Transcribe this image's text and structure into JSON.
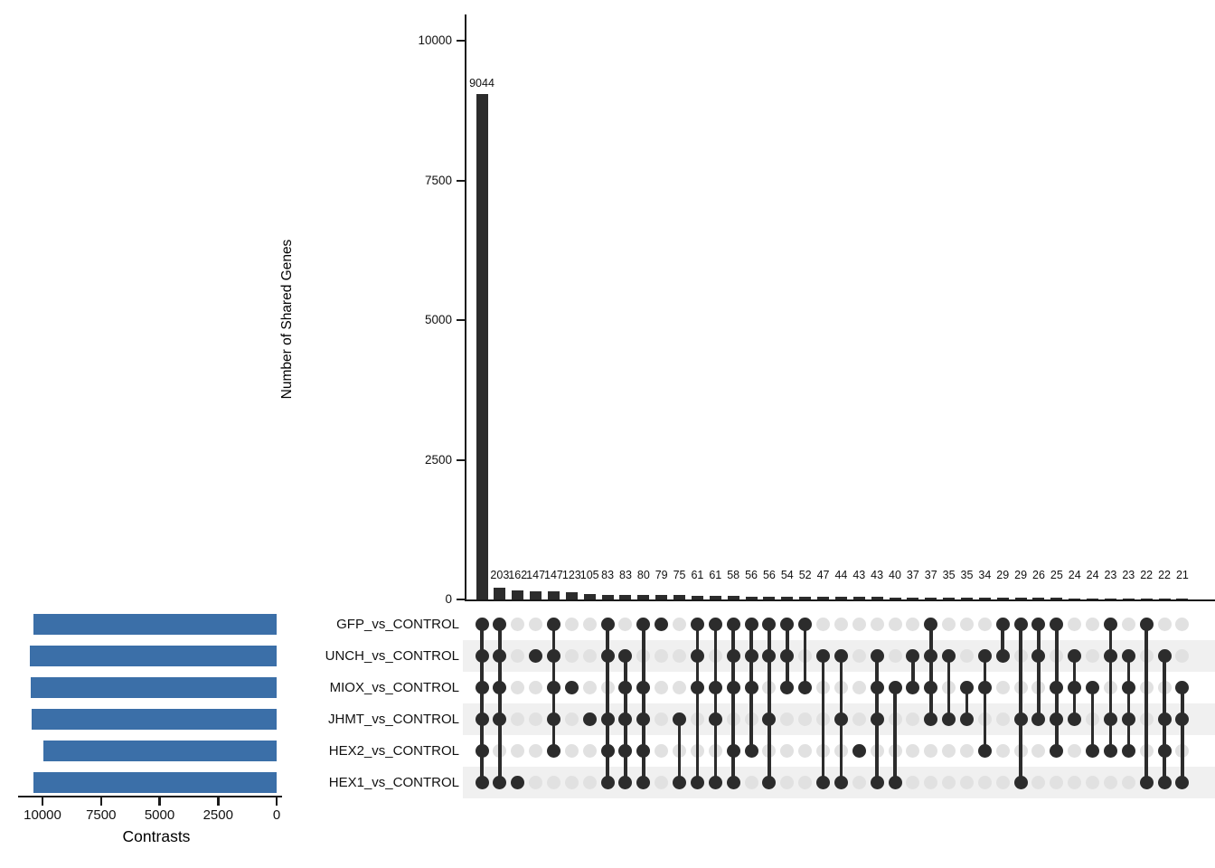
{
  "chart_data": {
    "type": "upset",
    "y_axis_label": "Number of Shared Genes",
    "y_ticks": [
      0,
      2500,
      5000,
      7500,
      10000
    ],
    "y_max": 10000,
    "set_size_axis_label": "Contrasts",
    "set_size_ticks": [
      10000,
      7500,
      5000,
      2500,
      0
    ],
    "set_size_max": 10000,
    "sets": [
      {
        "label": "GFP_vs_CONTROL",
        "size": 10400
      },
      {
        "label": "UNCH_vs_CONTROL",
        "size": 10550
      },
      {
        "label": "MIOX_vs_CONTROL",
        "size": 10500
      },
      {
        "label": "JHMT_vs_CONTROL",
        "size": 10450
      },
      {
        "label": "HEX2_vs_CONTROL",
        "size": 9950
      },
      {
        "label": "HEX1_vs_CONTROL",
        "size": 10400
      }
    ],
    "intersections": [
      {
        "size": 9044,
        "members": [
          0,
          1,
          2,
          3,
          4,
          5
        ]
      },
      {
        "size": 203,
        "members": [
          0,
          1,
          2,
          3,
          5
        ]
      },
      {
        "size": 162,
        "members": [
          5
        ]
      },
      {
        "size": 147,
        "members": [
          1
        ]
      },
      {
        "size": 147,
        "members": [
          0,
          1,
          2,
          3,
          4
        ]
      },
      {
        "size": 123,
        "members": [
          2
        ]
      },
      {
        "size": 105,
        "members": [
          3
        ]
      },
      {
        "size": 83,
        "members": [
          0,
          1,
          3,
          4,
          5
        ]
      },
      {
        "size": 83,
        "members": [
          1,
          2,
          3,
          4,
          5
        ]
      },
      {
        "size": 80,
        "members": [
          0,
          2,
          3,
          4,
          5
        ]
      },
      {
        "size": 79,
        "members": [
          0
        ]
      },
      {
        "size": 75,
        "members": [
          3,
          5
        ]
      },
      {
        "size": 61,
        "members": [
          0,
          1,
          2,
          5
        ]
      },
      {
        "size": 61,
        "members": [
          0,
          2,
          3,
          5
        ]
      },
      {
        "size": 58,
        "members": [
          0,
          1,
          2,
          4,
          5
        ]
      },
      {
        "size": 56,
        "members": [
          0,
          1,
          2,
          4
        ]
      },
      {
        "size": 56,
        "members": [
          0,
          1,
          3,
          5
        ]
      },
      {
        "size": 54,
        "members": [
          0,
          1,
          2
        ]
      },
      {
        "size": 52,
        "members": [
          0,
          2
        ]
      },
      {
        "size": 47,
        "members": [
          1,
          5
        ]
      },
      {
        "size": 44,
        "members": [
          1,
          3,
          5
        ]
      },
      {
        "size": 43,
        "members": [
          4
        ]
      },
      {
        "size": 43,
        "members": [
          1,
          2,
          3,
          5
        ]
      },
      {
        "size": 40,
        "members": [
          2,
          5
        ]
      },
      {
        "size": 37,
        "members": [
          1,
          2
        ]
      },
      {
        "size": 37,
        "members": [
          0,
          1,
          2,
          3
        ]
      },
      {
        "size": 35,
        "members": [
          1,
          3
        ]
      },
      {
        "size": 35,
        "members": [
          2,
          3
        ]
      },
      {
        "size": 34,
        "members": [
          1,
          2,
          4
        ]
      },
      {
        "size": 29,
        "members": [
          0,
          1
        ]
      },
      {
        "size": 29,
        "members": [
          0,
          3,
          5
        ]
      },
      {
        "size": 26,
        "members": [
          0,
          1,
          3
        ]
      },
      {
        "size": 25,
        "members": [
          0,
          2,
          3,
          4
        ]
      },
      {
        "size": 24,
        "members": [
          1,
          2,
          3
        ]
      },
      {
        "size": 24,
        "members": [
          2,
          4
        ]
      },
      {
        "size": 23,
        "members": [
          0,
          1,
          3,
          4
        ]
      },
      {
        "size": 23,
        "members": [
          1,
          2,
          3,
          4
        ]
      },
      {
        "size": 22,
        "members": [
          0,
          5
        ]
      },
      {
        "size": 22,
        "members": [
          1,
          3,
          4,
          5
        ]
      },
      {
        "size": 21,
        "members": [
          2,
          3,
          5
        ]
      }
    ],
    "colors": {
      "intersection_bar": "#2c2c2c",
      "set_size_bar": "#3b6fa8",
      "matrix_dot_filled": "#2c2c2c",
      "matrix_dot_empty": "#e1e1e1",
      "row_band": "#f0f0f0",
      "axis": "#1a1a1a",
      "text": "#000000"
    },
    "legend": null,
    "grid": false
  }
}
